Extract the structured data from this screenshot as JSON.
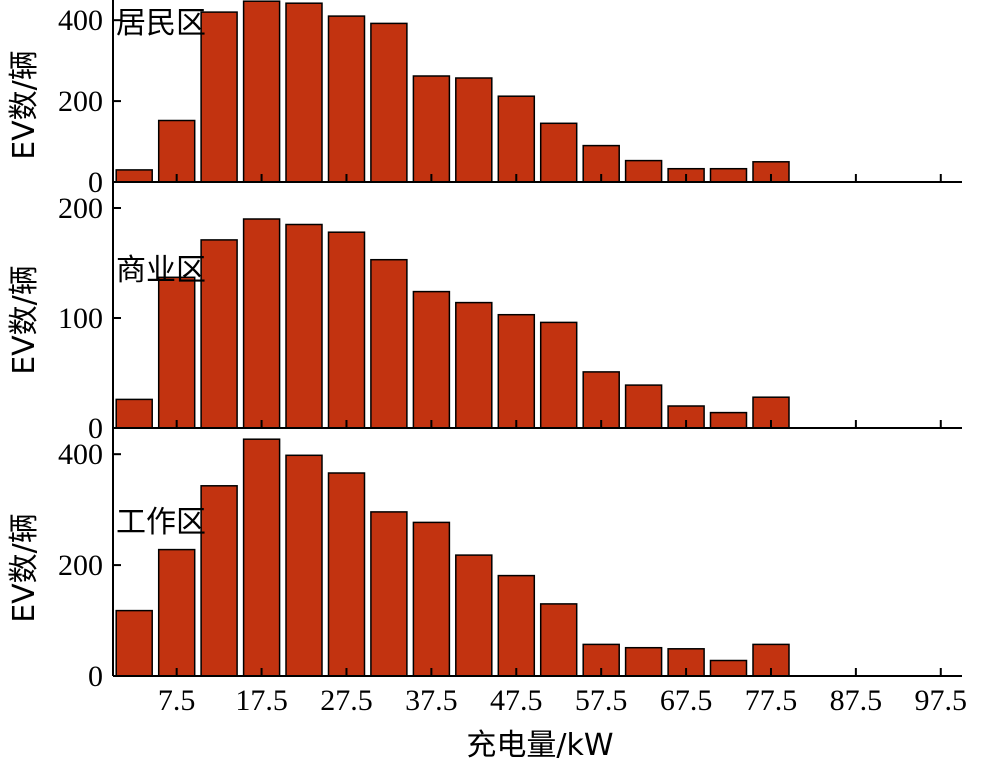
{
  "chart_data": {
    "type": "bar",
    "xlabel": "充电量/kW",
    "ylabel": "EV数/辆",
    "x_tick_labels": [
      "7.5",
      "17.5",
      "27.5",
      "37.5",
      "47.5",
      "57.5",
      "67.5",
      "77.5",
      "87.5",
      "97.5"
    ],
    "xlim": [
      0,
      100
    ],
    "bar_centers": [
      2.5,
      7.5,
      12.5,
      17.5,
      22.5,
      27.5,
      32.5,
      37.5,
      42.5,
      47.5,
      52.5,
      57.5,
      62.5,
      67.5,
      72.5,
      77.5
    ],
    "bar_color": "#c23310",
    "panels": [
      {
        "label": "居民区",
        "ylim": [
          0,
          440
        ],
        "yticks": [
          0,
          200,
          400
        ],
        "values": [
          30,
          152,
          420,
          447,
          442,
          410,
          392,
          262,
          257,
          212,
          145,
          90,
          53,
          33,
          33,
          50
        ]
      },
      {
        "label": "商业区",
        "ylim": [
          0,
          220
        ],
        "yticks": [
          0,
          100,
          200
        ],
        "values": [
          26,
          137,
          171,
          190,
          185,
          178,
          153,
          124,
          114,
          103,
          96,
          51,
          39,
          20,
          14,
          28
        ]
      },
      {
        "label": "工作区",
        "ylim": [
          0,
          440
        ],
        "yticks": [
          0,
          200,
          400
        ],
        "values": [
          118,
          228,
          343,
          427,
          398,
          366,
          296,
          277,
          218,
          181,
          130,
          57,
          51,
          49,
          28,
          57
        ]
      }
    ]
  }
}
